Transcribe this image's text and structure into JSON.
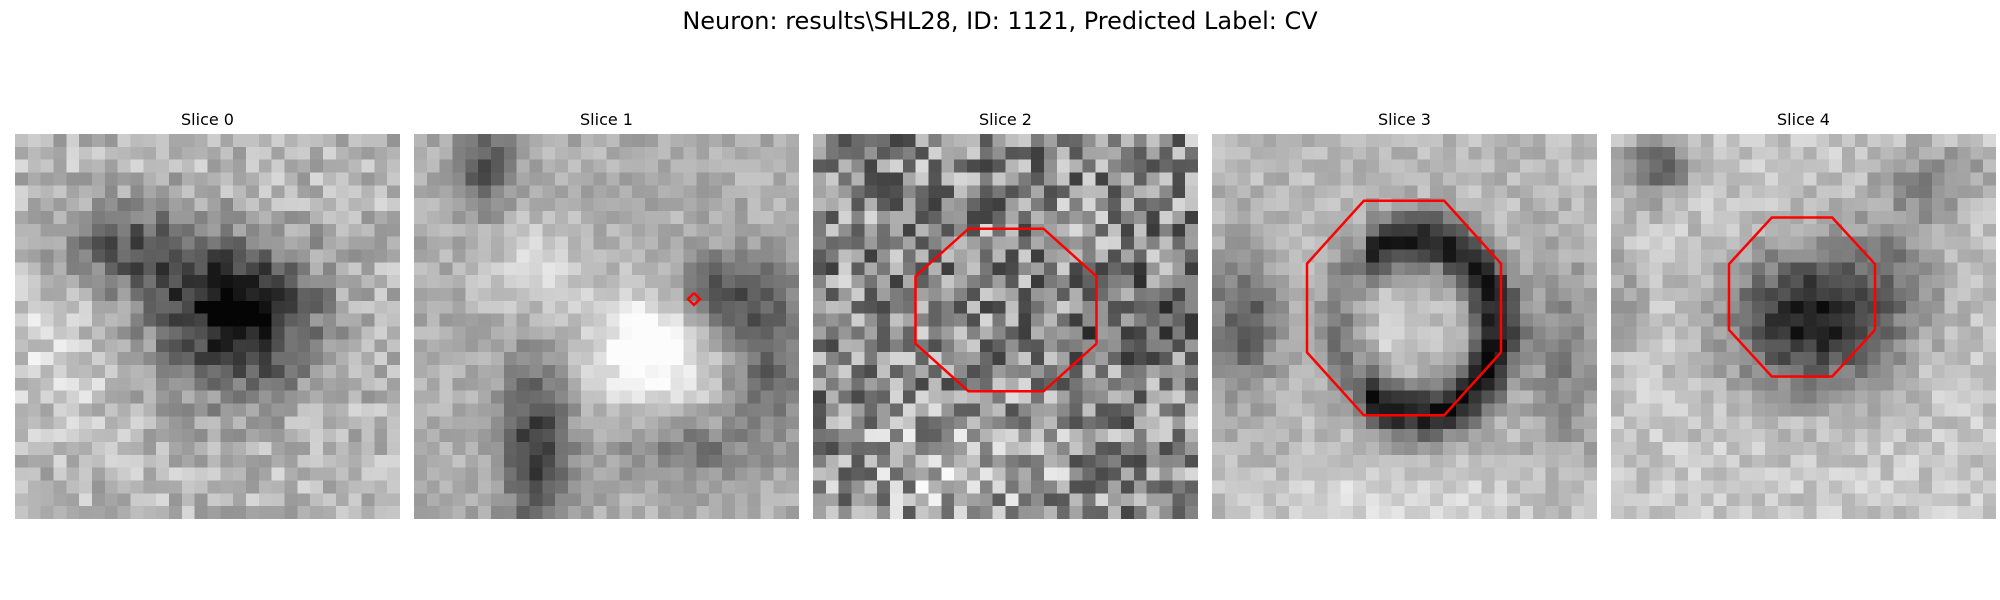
{
  "figure": {
    "title": "Neuron: results\\SHL28, ID: 1121, Predicted Label: CV"
  },
  "panels": [
    {
      "label": "Slice 0",
      "contour": "none"
    },
    {
      "label": "Slice 1",
      "contour": "small-diamond"
    },
    {
      "label": "Slice 2",
      "contour": "octagon"
    },
    {
      "label": "Slice 3",
      "contour": "octagon"
    },
    {
      "label": "Slice 4",
      "contour": "octagon"
    }
  ],
  "colors": {
    "contour": "#ff0000",
    "background": "#ffffff"
  },
  "image": {
    "colormap": "grayscale",
    "grid": "30x30 pixelated microscopy slices"
  }
}
